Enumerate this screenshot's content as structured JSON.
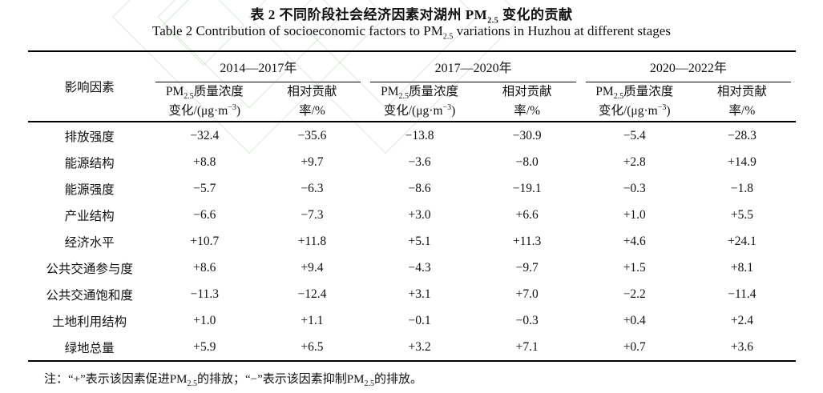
{
  "page": {
    "background_color": "#ffffff",
    "text_color": "#111111",
    "watermark_color": "#96cd96"
  },
  "title": {
    "zh": "表 2  不同阶段社会经济因素对湖州 PM~2.5~ 变化的贡献",
    "en": "Table 2  Contribution of socioeconomic factors to PM~2.5~ variations in Huzhou at different stages"
  },
  "table": {
    "stub_header": "影响因素",
    "groups": [
      {
        "period": "2014—2017年"
      },
      {
        "period": "2017—2020年"
      },
      {
        "period": "2020—2022年"
      }
    ],
    "subcolumns": {
      "concentration_line1": "PM~2.5~质量浓度",
      "concentration_line2": "变化/(μg·m^−3^)",
      "contribution_line1": "相对贡献",
      "contribution_line2": "率/%"
    },
    "rows": [
      {
        "label": "排放强度",
        "values": [
          "−32.4",
          "−35.6",
          "−13.8",
          "−30.9",
          "−5.4",
          "−28.3"
        ]
      },
      {
        "label": "能源结构",
        "values": [
          "+8.8",
          "+9.7",
          "−3.6",
          "−8.0",
          "+2.8",
          "+14.9"
        ]
      },
      {
        "label": "能源强度",
        "values": [
          "−5.7",
          "−6.3",
          "−8.6",
          "−19.1",
          "−0.3",
          "−1.8"
        ]
      },
      {
        "label": "产业结构",
        "values": [
          "−6.6",
          "−7.3",
          "+3.0",
          "+6.6",
          "+1.0",
          "+5.5"
        ]
      },
      {
        "label": "经济水平",
        "values": [
          "+10.7",
          "+11.8",
          "+5.1",
          "+11.3",
          "+4.6",
          "+24.1"
        ]
      },
      {
        "label": "公共交通参与度",
        "values": [
          "+8.6",
          "+9.4",
          "−4.3",
          "−9.7",
          "+1.5",
          "+8.1"
        ]
      },
      {
        "label": "公共交通饱和度",
        "values": [
          "−11.3",
          "−12.4",
          "+3.1",
          "+7.0",
          "−2.2",
          "−11.4"
        ]
      },
      {
        "label": "土地利用结构",
        "values": [
          "+1.0",
          "+1.1",
          "−0.1",
          "−0.3",
          "+0.4",
          "+2.4"
        ]
      },
      {
        "label": "绿地总量",
        "values": [
          "+5.9",
          "+6.5",
          "+3.2",
          "+7.1",
          "+0.7",
          "+3.6"
        ]
      }
    ],
    "footnote": "注：“+”表示该因素促进PM~2.5~的排放；“−”表示该因素抑制PM~2.5~的排放。"
  }
}
